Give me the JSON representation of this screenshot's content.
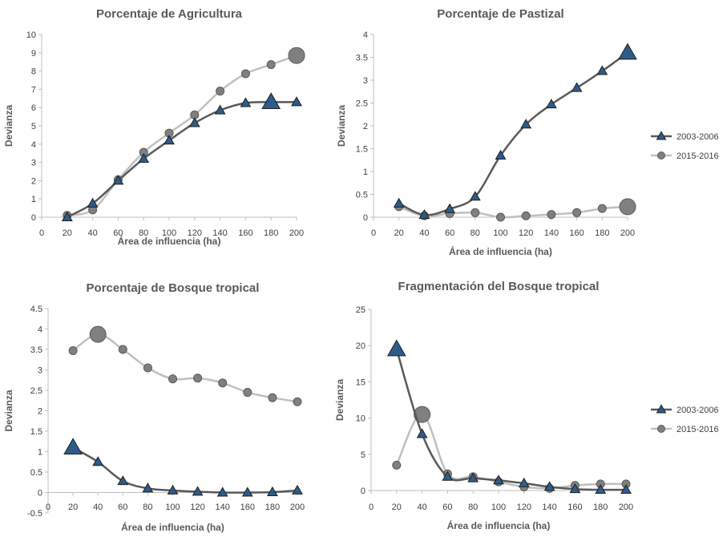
{
  "chart_data": [
    {
      "type": "line",
      "title": "Porcentaje de Agricultura",
      "xlabel": "Área de influencia (ha)",
      "ylabel": "Devianza",
      "x": [
        20,
        40,
        60,
        80,
        100,
        120,
        140,
        160,
        180,
        200
      ],
      "xticks": [
        "0",
        "20",
        "40",
        "60",
        "80",
        "100",
        "120",
        "140",
        "160",
        "180",
        "200"
      ],
      "yticks": [
        "0",
        "1",
        "2",
        "3",
        "4",
        "5",
        "6",
        "7",
        "8",
        "9",
        "10"
      ],
      "xlim": [
        0,
        200
      ],
      "ylim": [
        0,
        10
      ],
      "grid": false,
      "series": [
        {
          "name": "2003-2006",
          "marker": "triangle",
          "color": "#595959",
          "marker_color": "#2e5c8a",
          "values": [
            0.0,
            0.75,
            2.0,
            3.2,
            4.2,
            5.15,
            5.85,
            6.25,
            6.3,
            6.3
          ],
          "highlight_index": 8
        },
        {
          "name": "2015-2016",
          "marker": "circle",
          "color": "#bfbfbf",
          "marker_color": "#808080",
          "values": [
            0.1,
            0.4,
            2.05,
            3.55,
            4.6,
            5.6,
            6.9,
            7.85,
            8.35,
            8.85
          ],
          "highlight_index": 9
        }
      ]
    },
    {
      "type": "line",
      "title": "Porcentaje de Pastizal",
      "xlabel": "Área de influencia (ha)",
      "ylabel": "Devianza",
      "x": [
        20,
        40,
        60,
        80,
        100,
        120,
        140,
        160,
        180,
        200
      ],
      "xticks": [
        "0",
        "20",
        "40",
        "60",
        "80",
        "100",
        "120",
        "140",
        "160",
        "180",
        "200"
      ],
      "yticks": [
        "0",
        "0.5",
        "1",
        "1.5",
        "2",
        "2.5",
        "3",
        "3.5",
        "4"
      ],
      "xlim": [
        0,
        200
      ],
      "ylim": [
        0,
        4
      ],
      "grid": false,
      "legend": "right",
      "series": [
        {
          "name": "2003-2006",
          "marker": "triangle",
          "color": "#595959",
          "marker_color": "#2e5c8a",
          "values": [
            0.3,
            0.05,
            0.18,
            0.45,
            1.35,
            2.03,
            2.47,
            2.83,
            3.2,
            3.6
          ],
          "highlight_index": 9
        },
        {
          "name": "2015-2016",
          "marker": "circle",
          "color": "#bfbfbf",
          "marker_color": "#808080",
          "values": [
            0.23,
            0.03,
            0.08,
            0.1,
            0.0,
            0.03,
            0.06,
            0.1,
            0.19,
            0.23
          ],
          "highlight_index": 9
        }
      ]
    },
    {
      "type": "line",
      "title": "Porcentaje de Bosque tropical",
      "xlabel": "Área de influencia (ha)",
      "ylabel": "Devianza",
      "x": [
        20,
        40,
        60,
        80,
        100,
        120,
        140,
        160,
        180,
        200
      ],
      "xticks": [
        "0",
        "20",
        "40",
        "60",
        "80",
        "100",
        "120",
        "140",
        "160",
        "180",
        "200"
      ],
      "yticks": [
        "-0.5",
        "0",
        "0.5",
        "1",
        "1.5",
        "2",
        "2.5",
        "3",
        "3.5",
        "4",
        "4.5"
      ],
      "xlim": [
        0,
        200
      ],
      "ylim": [
        -0.5,
        4.5
      ],
      "grid": false,
      "series": [
        {
          "name": "2003-2006",
          "marker": "triangle",
          "color": "#595959",
          "marker_color": "#2e5c8a",
          "values": [
            1.1,
            0.75,
            0.28,
            0.1,
            0.05,
            0.02,
            0.0,
            0.0,
            0.01,
            0.05
          ],
          "highlight_index": 0
        },
        {
          "name": "2015-2016",
          "marker": "circle",
          "color": "#bfbfbf",
          "marker_color": "#808080",
          "values": [
            3.47,
            3.87,
            3.5,
            3.05,
            2.78,
            2.8,
            2.68,
            2.45,
            2.32,
            2.22
          ],
          "highlight_index": 1
        }
      ]
    },
    {
      "type": "line",
      "title": "Fragmentación del Bosque tropical",
      "xlabel": "Área de influencia (ha)",
      "ylabel": "Devianza",
      "x": [
        20,
        40,
        60,
        80,
        100,
        120,
        140,
        160,
        180,
        200
      ],
      "xticks": [
        "0",
        "20",
        "40",
        "60",
        "80",
        "100",
        "120",
        "140",
        "160",
        "180",
        "200"
      ],
      "yticks": [
        "0",
        "5",
        "10",
        "15",
        "20",
        "25"
      ],
      "xlim": [
        0,
        200
      ],
      "ylim": [
        0,
        25
      ],
      "grid": false,
      "legend": "right",
      "series": [
        {
          "name": "2003-2006",
          "marker": "triangle",
          "color": "#595959",
          "marker_color": "#2e5c8a",
          "values": [
            19.5,
            7.8,
            1.9,
            1.7,
            1.4,
            1.0,
            0.5,
            0.2,
            0.1,
            0.1
          ],
          "highlight_index": 0
        },
        {
          "name": "2015-2016",
          "marker": "circle",
          "color": "#bfbfbf",
          "marker_color": "#808080",
          "values": [
            3.5,
            10.5,
            2.3,
            1.9,
            1.2,
            0.5,
            0.3,
            0.7,
            0.9,
            0.9
          ],
          "highlight_index": 1
        }
      ]
    }
  ]
}
